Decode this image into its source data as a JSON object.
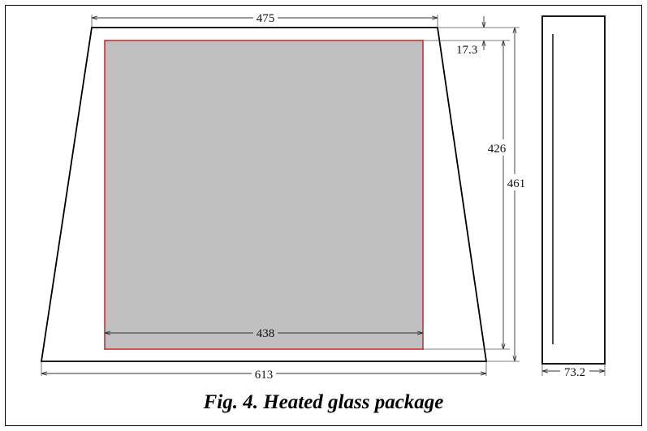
{
  "colors": {
    "outline": "#000000",
    "glass_fill": "#c0c0c0",
    "glass_border": "#d42020",
    "dimension_line": "#333333"
  },
  "dimensions": {
    "top_width": "475",
    "offset_top": "17.3",
    "inner_height": "426",
    "outer_height": "461",
    "inner_width": "438",
    "bottom_width": "613",
    "thickness": "73.2"
  },
  "caption": "Fig. 4. Heated glass package"
}
